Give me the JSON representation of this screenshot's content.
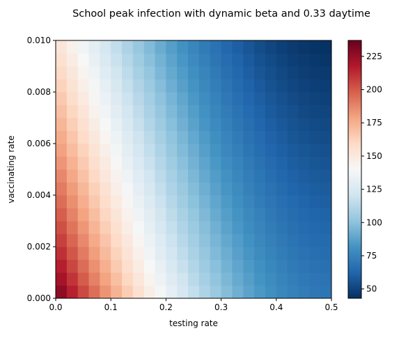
{
  "chart_data": {
    "type": "heatmap",
    "title": "School peak infection with dynamic beta and 0.33 daytime",
    "xlabel": "testing rate",
    "ylabel": "vaccinating rate",
    "xlim": [
      0,
      0.5
    ],
    "ylim": [
      0,
      0.01
    ],
    "x_ticks": [
      0,
      0.1,
      0.2,
      0.3,
      0.4,
      0.5
    ],
    "x_tick_labels": [
      "0.0",
      "0.1",
      "0.2",
      "0.3",
      "0.4",
      "0.5"
    ],
    "y_ticks": [
      0,
      0.002,
      0.004,
      0.006,
      0.008,
      0.01
    ],
    "y_tick_labels": [
      "0.000",
      "0.002",
      "0.004",
      "0.006",
      "0.008",
      "0.010"
    ],
    "grid": false,
    "colormap": "RdBu_r",
    "colorbar": {
      "vmin": 43,
      "vmax": 237,
      "ticks": [
        50,
        75,
        100,
        125,
        150,
        175,
        200,
        225
      ],
      "tick_labels": [
        "50",
        "75",
        "100",
        "125",
        "150",
        "175",
        "200",
        "225"
      ]
    },
    "grid_shape": {
      "cols": 25,
      "rows": 20
    },
    "x_range": [
      0,
      0.5
    ],
    "y_range": [
      0,
      0.01
    ],
    "value_model": {
      "description": "estimated peak infection read from colors",
      "corner_values": {
        "x0_y0": 237,
        "x0_y_max": 155,
        "x_max_y0": 70,
        "x_max_y_max": 43
      }
    }
  }
}
